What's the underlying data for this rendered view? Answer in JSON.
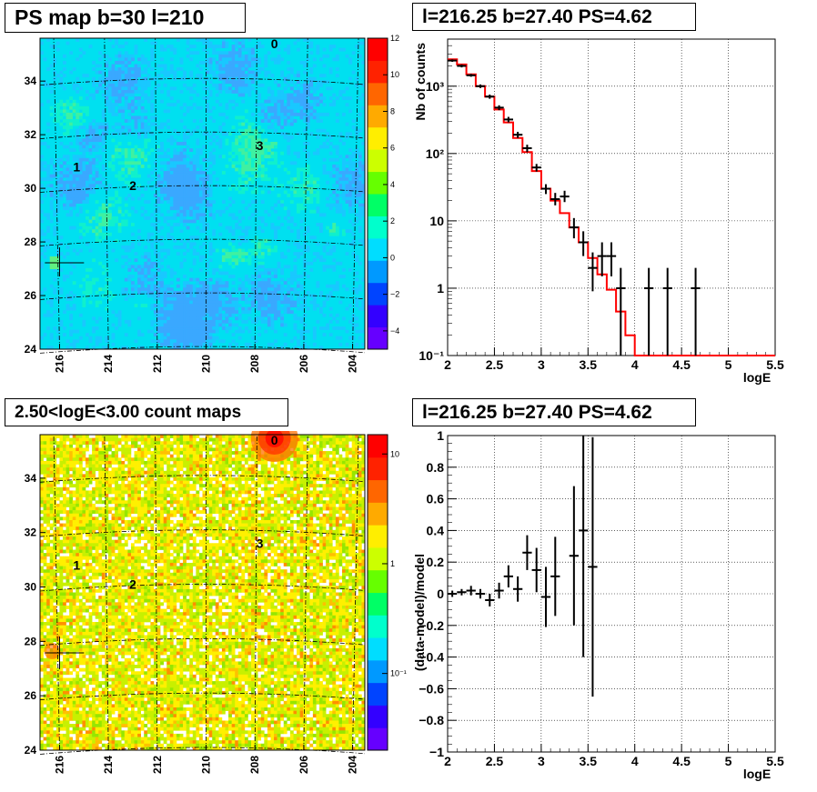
{
  "panels": {
    "ps_map": {
      "title": "PS map b=30 l=210",
      "x_ticks": [
        "216",
        "214",
        "212",
        "210",
        "208",
        "206",
        "204"
      ],
      "y_ticks": [
        "24",
        "26",
        "28",
        "30",
        "32",
        "34"
      ],
      "colorbar_ticks": [
        "12",
        "10",
        "8",
        "6",
        "4",
        "2",
        "0",
        "−2",
        "−4"
      ],
      "markers": [
        "0",
        "1",
        "2",
        "3"
      ]
    },
    "spectrum": {
      "title": "l=216.25 b=27.40 PS=4.62"
    },
    "count_map": {
      "title": "2.50<logE<3.00 count maps",
      "x_ticks": [
        "216",
        "214",
        "212",
        "210",
        "208",
        "206",
        "204"
      ],
      "y_ticks": [
        "24",
        "26",
        "28",
        "30",
        "32",
        "34"
      ],
      "colorbar_ticks": [
        "10",
        "1",
        "10⁻¹"
      ],
      "markers": [
        "0",
        "1",
        "2",
        "3"
      ]
    },
    "residual": {
      "title": "l=216.25 b=27.40 PS=4.62"
    }
  },
  "chart_data": [
    {
      "type": "heatmap",
      "title": "PS map b=30 l=210",
      "xlabel": "",
      "ylabel": "",
      "xlim": [
        216.8,
        203.5
      ],
      "ylim": [
        24,
        35.6
      ],
      "zlim": [
        -5,
        12
      ],
      "colorscale": [
        "#5a00ff",
        "#0010ff",
        "#0080ff",
        "#00e0ff",
        "#00ff80",
        "#80ff00",
        "#ffff00",
        "#ff8000",
        "#ff0000"
      ],
      "grid": true,
      "point_sources": [
        {
          "label": "0",
          "l": 207.2,
          "b": 35.4
        },
        {
          "label": "1",
          "l": 215.3,
          "b": 30.8
        },
        {
          "label": "2",
          "l": 213.0,
          "b": 30.1
        },
        {
          "label": "3",
          "l": 207.8,
          "b": 31.6
        }
      ]
    },
    {
      "type": "line",
      "title": "l=216.25 b=27.40 PS=4.62",
      "xlabel": "logE",
      "ylabel": "Nb of counts",
      "xlim": [
        2,
        5.5
      ],
      "ylim": [
        0.1,
        5000
      ],
      "yscale": "log",
      "xticks": [
        "2",
        "2.5",
        "3",
        "3.5",
        "4",
        "4.5",
        "5",
        "5.5"
      ],
      "yticks": [
        "10⁻¹",
        "1",
        "10",
        "10²",
        "10³"
      ],
      "grid": true,
      "model": {
        "color": "#ff0000",
        "bin_edges": [
          2.0,
          2.1,
          2.2,
          2.3,
          2.4,
          2.5,
          2.6,
          2.7,
          2.8,
          2.9,
          3.0,
          3.1,
          3.2,
          3.3,
          3.4,
          3.5,
          3.6,
          3.7,
          3.8,
          3.9,
          4.0,
          4.1,
          4.2,
          4.3,
          4.4,
          4.5,
          4.6,
          4.7,
          4.8,
          4.9,
          5.0,
          5.1,
          5.2,
          5.3,
          5.4,
          5.5
        ],
        "values": [
          2500,
          2100,
          1500,
          1000,
          700,
          450,
          290,
          170,
          105,
          55,
          30,
          20,
          13,
          8,
          4.8,
          2.8,
          1.6,
          0.95,
          0.45,
          0.2,
          0.1,
          0.1,
          0.1,
          0.1,
          0.1,
          0.1,
          0.1,
          0.1,
          0.1,
          0.1,
          0.1,
          0.1,
          0.1,
          0.1,
          0.1
        ]
      },
      "data": {
        "color": "#000000",
        "x": [
          2.05,
          2.15,
          2.25,
          2.35,
          2.45,
          2.55,
          2.65,
          2.75,
          2.85,
          2.95,
          3.05,
          3.15,
          3.25,
          3.35,
          3.45,
          3.55,
          3.65,
          3.75,
          3.85,
          4.15,
          4.35,
          4.65
        ],
        "y": [
          2400,
          2000,
          1450,
          1000,
          700,
          480,
          320,
          190,
          120,
          62,
          30,
          21,
          23,
          8,
          4.8,
          2,
          3,
          3,
          1,
          1,
          1,
          1
        ],
        "ylow": [
          2300,
          1900,
          1380,
          940,
          650,
          440,
          290,
          170,
          105,
          54,
          25,
          17,
          19,
          5.5,
          3,
          0.9,
          1.5,
          1.5,
          0.1,
          0.1,
          0.1,
          0.1
        ],
        "yhigh": [
          2500,
          2100,
          1520,
          1060,
          750,
          520,
          350,
          210,
          135,
          70,
          35,
          26,
          28,
          11,
          7,
          3.4,
          4.8,
          4.8,
          2,
          2,
          2,
          2
        ]
      }
    },
    {
      "type": "heatmap",
      "title": "2.50<logE<3.00 count maps",
      "xlabel": "",
      "ylabel": "",
      "xlim": [
        216.8,
        203.5
      ],
      "ylim": [
        24,
        35.6
      ],
      "zscale": "log",
      "zlim": [
        0.02,
        15
      ],
      "grid": true,
      "point_sources": [
        {
          "label": "0",
          "l": 207.2,
          "b": 35.4
        },
        {
          "label": "1",
          "l": 215.3,
          "b": 30.8
        },
        {
          "label": "2",
          "l": 213.0,
          "b": 30.1
        },
        {
          "label": "3",
          "l": 207.8,
          "b": 31.6
        }
      ]
    },
    {
      "type": "scatter",
      "title": "l=216.25 b=27.40 PS=4.62",
      "xlabel": "logE",
      "ylabel": "(data-model)/model",
      "xlim": [
        2,
        5.5
      ],
      "ylim": [
        -1,
        1
      ],
      "xticks": [
        "2",
        "2.5",
        "3",
        "3.5",
        "4",
        "4.5",
        "5",
        "5.5"
      ],
      "yticks": [
        "−1",
        "−0.8",
        "−0.6",
        "−0.4",
        "−0.2",
        "0",
        "0.2",
        "0.4",
        "0.6",
        "0.8",
        "1"
      ],
      "grid": true,
      "points": {
        "x": [
          2.05,
          2.15,
          2.25,
          2.35,
          2.45,
          2.55,
          2.65,
          2.75,
          2.85,
          2.95,
          3.05,
          3.15,
          3.35,
          3.45,
          3.55
        ],
        "y": [
          0.0,
          0.01,
          0.02,
          0.0,
          -0.04,
          0.02,
          0.11,
          0.03,
          0.26,
          0.15,
          -0.02,
          0.11,
          0.24,
          0.4,
          0.17
        ],
        "yerr": [
          0.02,
          0.02,
          0.03,
          0.03,
          0.04,
          0.05,
          0.07,
          0.08,
          0.11,
          0.14,
          0.19,
          0.25,
          0.44,
          0.8,
          0.82
        ]
      }
    }
  ]
}
